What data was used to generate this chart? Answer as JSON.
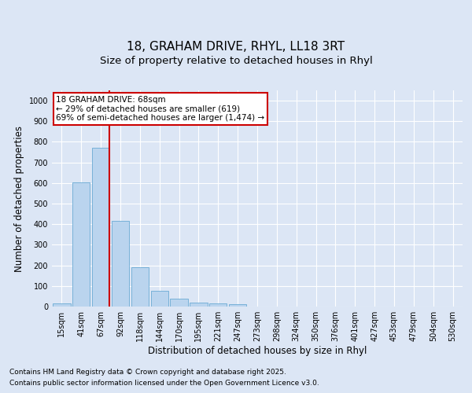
{
  "title_line1": "18, GRAHAM DRIVE, RHYL, LL18 3RT",
  "title_line2": "Size of property relative to detached houses in Rhyl",
  "xlabel": "Distribution of detached houses by size in Rhyl",
  "ylabel": "Number of detached properties",
  "annotation_line1": "18 GRAHAM DRIVE: 68sqm",
  "annotation_line2": "← 29% of detached houses are smaller (619)",
  "annotation_line3": "69% of semi-detached houses are larger (1,474) →",
  "footer_line1": "Contains HM Land Registry data © Crown copyright and database right 2025.",
  "footer_line2": "Contains public sector information licensed under the Open Government Licence v3.0.",
  "categories": [
    "15sqm",
    "41sqm",
    "67sqm",
    "92sqm",
    "118sqm",
    "144sqm",
    "170sqm",
    "195sqm",
    "221sqm",
    "247sqm",
    "273sqm",
    "298sqm",
    "324sqm",
    "350sqm",
    "376sqm",
    "401sqm",
    "427sqm",
    "453sqm",
    "479sqm",
    "504sqm",
    "530sqm"
  ],
  "values": [
    15,
    605,
    770,
    415,
    192,
    77,
    40,
    18,
    15,
    10,
    0,
    0,
    0,
    0,
    0,
    0,
    0,
    0,
    0,
    0,
    0
  ],
  "bar_color": "#bad4ee",
  "bar_edge_color": "#6aaad4",
  "red_line_index": 2,
  "ylim": [
    0,
    1050
  ],
  "yticks": [
    0,
    100,
    200,
    300,
    400,
    500,
    600,
    700,
    800,
    900,
    1000
  ],
  "bg_color": "#dce6f5",
  "plot_bg_color": "#dce6f5",
  "annotation_box_color": "#ffffff",
  "annotation_box_edge": "#cc0000",
  "red_line_color": "#cc0000",
  "title_fontsize": 11,
  "subtitle_fontsize": 9.5,
  "tick_fontsize": 7,
  "label_fontsize": 8.5,
  "footer_fontsize": 6.5,
  "annotation_fontsize": 7.5
}
